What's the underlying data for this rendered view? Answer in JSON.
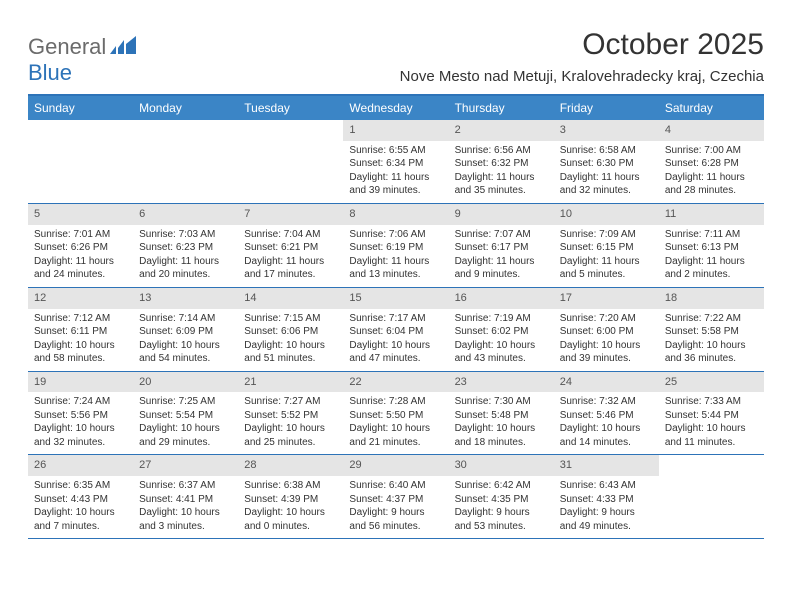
{
  "logo": {
    "part1": "General",
    "part2": "Blue"
  },
  "title": "October 2025",
  "location": "Nove Mesto nad Metuji, Kralovehradecky kraj, Czechia",
  "colors": {
    "header_bg": "#3b85c6",
    "border": "#2d73b8",
    "daynum_bg": "#e5e5e5",
    "text": "#333333",
    "logo_gray": "#6b6b6b",
    "logo_blue": "#2d73b8"
  },
  "dayNames": [
    "Sunday",
    "Monday",
    "Tuesday",
    "Wednesday",
    "Thursday",
    "Friday",
    "Saturday"
  ],
  "weeks": [
    [
      {
        "empty": true
      },
      {
        "empty": true
      },
      {
        "empty": true
      },
      {
        "n": "1",
        "sr": "6:55 AM",
        "ss": "6:34 PM",
        "dl": "11 hours and 39 minutes."
      },
      {
        "n": "2",
        "sr": "6:56 AM",
        "ss": "6:32 PM",
        "dl": "11 hours and 35 minutes."
      },
      {
        "n": "3",
        "sr": "6:58 AM",
        "ss": "6:30 PM",
        "dl": "11 hours and 32 minutes."
      },
      {
        "n": "4",
        "sr": "7:00 AM",
        "ss": "6:28 PM",
        "dl": "11 hours and 28 minutes."
      }
    ],
    [
      {
        "n": "5",
        "sr": "7:01 AM",
        "ss": "6:26 PM",
        "dl": "11 hours and 24 minutes."
      },
      {
        "n": "6",
        "sr": "7:03 AM",
        "ss": "6:23 PM",
        "dl": "11 hours and 20 minutes."
      },
      {
        "n": "7",
        "sr": "7:04 AM",
        "ss": "6:21 PM",
        "dl": "11 hours and 17 minutes."
      },
      {
        "n": "8",
        "sr": "7:06 AM",
        "ss": "6:19 PM",
        "dl": "11 hours and 13 minutes."
      },
      {
        "n": "9",
        "sr": "7:07 AM",
        "ss": "6:17 PM",
        "dl": "11 hours and 9 minutes."
      },
      {
        "n": "10",
        "sr": "7:09 AM",
        "ss": "6:15 PM",
        "dl": "11 hours and 5 minutes."
      },
      {
        "n": "11",
        "sr": "7:11 AM",
        "ss": "6:13 PM",
        "dl": "11 hours and 2 minutes."
      }
    ],
    [
      {
        "n": "12",
        "sr": "7:12 AM",
        "ss": "6:11 PM",
        "dl": "10 hours and 58 minutes."
      },
      {
        "n": "13",
        "sr": "7:14 AM",
        "ss": "6:09 PM",
        "dl": "10 hours and 54 minutes."
      },
      {
        "n": "14",
        "sr": "7:15 AM",
        "ss": "6:06 PM",
        "dl": "10 hours and 51 minutes."
      },
      {
        "n": "15",
        "sr": "7:17 AM",
        "ss": "6:04 PM",
        "dl": "10 hours and 47 minutes."
      },
      {
        "n": "16",
        "sr": "7:19 AM",
        "ss": "6:02 PM",
        "dl": "10 hours and 43 minutes."
      },
      {
        "n": "17",
        "sr": "7:20 AM",
        "ss": "6:00 PM",
        "dl": "10 hours and 39 minutes."
      },
      {
        "n": "18",
        "sr": "7:22 AM",
        "ss": "5:58 PM",
        "dl": "10 hours and 36 minutes."
      }
    ],
    [
      {
        "n": "19",
        "sr": "7:24 AM",
        "ss": "5:56 PM",
        "dl": "10 hours and 32 minutes."
      },
      {
        "n": "20",
        "sr": "7:25 AM",
        "ss": "5:54 PM",
        "dl": "10 hours and 29 minutes."
      },
      {
        "n": "21",
        "sr": "7:27 AM",
        "ss": "5:52 PM",
        "dl": "10 hours and 25 minutes."
      },
      {
        "n": "22",
        "sr": "7:28 AM",
        "ss": "5:50 PM",
        "dl": "10 hours and 21 minutes."
      },
      {
        "n": "23",
        "sr": "7:30 AM",
        "ss": "5:48 PM",
        "dl": "10 hours and 18 minutes."
      },
      {
        "n": "24",
        "sr": "7:32 AM",
        "ss": "5:46 PM",
        "dl": "10 hours and 14 minutes."
      },
      {
        "n": "25",
        "sr": "7:33 AM",
        "ss": "5:44 PM",
        "dl": "10 hours and 11 minutes."
      }
    ],
    [
      {
        "n": "26",
        "sr": "6:35 AM",
        "ss": "4:43 PM",
        "dl": "10 hours and 7 minutes."
      },
      {
        "n": "27",
        "sr": "6:37 AM",
        "ss": "4:41 PM",
        "dl": "10 hours and 3 minutes."
      },
      {
        "n": "28",
        "sr": "6:38 AM",
        "ss": "4:39 PM",
        "dl": "10 hours and 0 minutes."
      },
      {
        "n": "29",
        "sr": "6:40 AM",
        "ss": "4:37 PM",
        "dl": "9 hours and 56 minutes."
      },
      {
        "n": "30",
        "sr": "6:42 AM",
        "ss": "4:35 PM",
        "dl": "9 hours and 53 minutes."
      },
      {
        "n": "31",
        "sr": "6:43 AM",
        "ss": "4:33 PM",
        "dl": "9 hours and 49 minutes."
      },
      {
        "empty": true
      }
    ]
  ],
  "labels": {
    "sunrise": "Sunrise: ",
    "sunset": "Sunset: ",
    "daylight": "Daylight: "
  }
}
